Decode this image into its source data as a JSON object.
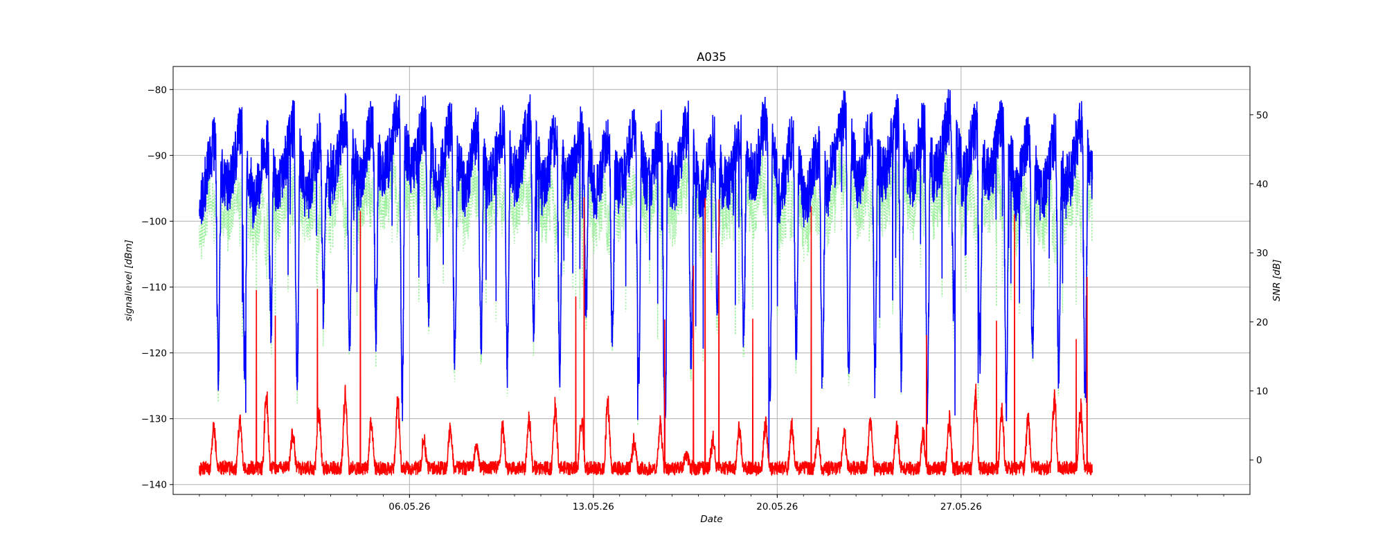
{
  "chart_data": {
    "type": "line",
    "title": "A035",
    "xlabel": "Date",
    "ylabel": "signallevel [dBm]",
    "ylabel_right": "SNR [dB]",
    "grid": true,
    "xlim": [
      "2026-04-27",
      "2026-06-07"
    ],
    "ylim": [
      -141.5,
      -76.5
    ],
    "ylim_right": [
      -5,
      57
    ],
    "x_ticks": [
      "2026-05-06",
      "2026-05-13",
      "2026-05-20",
      "2026-05-27"
    ],
    "x_tick_labels": [
      "06.05.26",
      "13.05.26",
      "20.05.26",
      "27.05.26"
    ],
    "y_ticks": [
      -140,
      -130,
      -120,
      -110,
      -100,
      -90,
      -80
    ],
    "y_tick_labels": [
      "−140",
      "−130",
      "−120",
      "−110",
      "−100",
      "−90",
      "−80"
    ],
    "y_ticks_right": [
      0,
      10,
      20,
      30,
      40,
      50
    ],
    "y_tick_labels_right": [
      "0",
      "10",
      "20",
      "30",
      "40",
      "50"
    ],
    "data_start": "2026-04-28",
    "data_end": "2026-06-01",
    "series": [
      {
        "axis": "left",
        "color": "#0000ff",
        "style": "solid",
        "description": "signal level, daily cycle",
        "daily_peak": [
          -88,
          -87,
          -89,
          -86,
          -88,
          -85,
          -86,
          -84,
          -85,
          -86,
          -87,
          -86,
          -85,
          -87,
          -86,
          -88,
          -86,
          -87,
          -86,
          -88,
          -87,
          -85,
          -88,
          -89,
          -84,
          -86,
          -85,
          -86,
          -84,
          -86,
          -85,
          -88,
          -88,
          -86,
          -88
        ],
        "daily_trough": [
          -125,
          -124,
          -118,
          -126,
          -115,
          -122,
          -118,
          -130,
          -115,
          -122,
          -120,
          -124,
          -119,
          -125,
          -116,
          -121,
          -127,
          -135,
          -122,
          -116,
          -121,
          -129,
          -121,
          -127,
          -124,
          -126,
          -124,
          -130,
          -116,
          -122,
          -129,
          -122,
          -126,
          -128,
          -128
        ],
        "range": [
          -137,
          -79.5
        ]
      },
      {
        "axis": "left",
        "color": "#ff0000",
        "style": "solid",
        "description": "noise level, daily cycle",
        "daily_peak": [
          -131,
          -130,
          -126,
          -132,
          -128,
          -126,
          -130,
          -127,
          -133,
          -131,
          -134,
          -131,
          -130,
          -128,
          -130,
          -127,
          -133,
          -130,
          -135,
          -133,
          -131,
          -130,
          -131,
          -132,
          -132,
          -130,
          -131,
          -132,
          -130,
          -126,
          -128,
          -130,
          -126,
          -128,
          -125
        ],
        "daily_trough": [
          -137.5,
          -137.5,
          -137.5,
          -137.5,
          -137.5,
          -137.5,
          -137.5,
          -137.5,
          -137.5,
          -137.5,
          -137.5,
          -137.5,
          -137.5,
          -137.5,
          -137.5,
          -137.5,
          -137.5,
          -137.5,
          -137.5,
          -137.5,
          -137.5,
          -137.5,
          -137.5,
          -137.5,
          -137.5,
          -137.5,
          -137.5,
          -137.5,
          -137.5,
          -137.5,
          -137.5,
          -137.5,
          -137.5,
          -137.5,
          -137.5
        ],
        "range": [
          -139,
          -95
        ]
      },
      {
        "axis": "right",
        "color": "#90ee90",
        "style": "dotted",
        "description": "SNR",
        "range": [
          5,
          53
        ]
      }
    ]
  }
}
